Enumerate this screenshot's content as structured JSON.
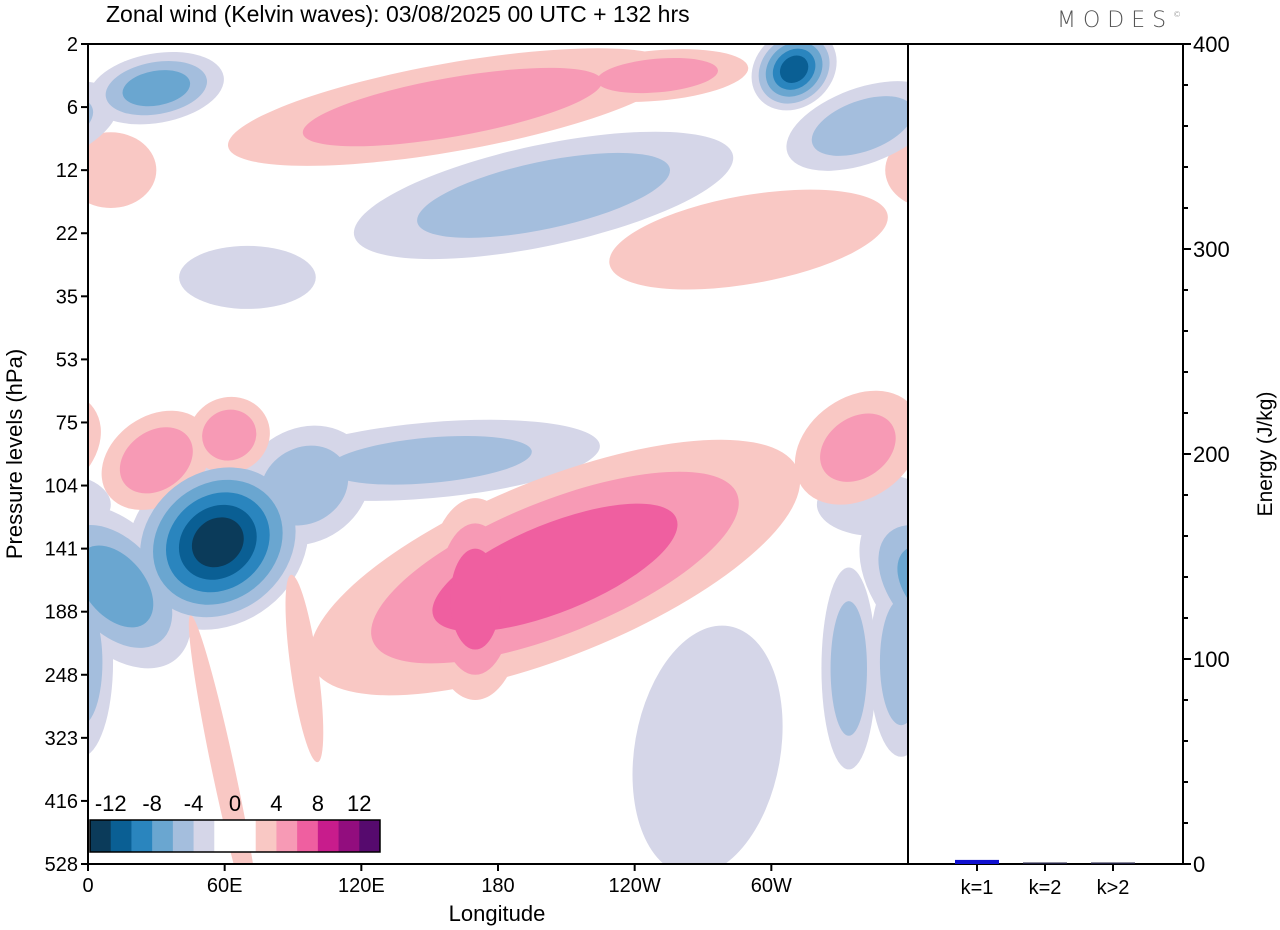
{
  "title": "Zonal wind (Kelvin waves):  03/08/2025  00 UTC  + 132 hrs",
  "logo": {
    "text": "MODES",
    "mark": "©"
  },
  "chart_data": [
    {
      "type": "heatmap",
      "title": "Zonal wind (Kelvin waves):  03/08/2025  00 UTC  + 132 hrs",
      "xlabel": "Longitude",
      "ylabel": "Pressure levels (hPa)",
      "x_ticks": [
        {
          "lon": 0,
          "label": "0"
        },
        {
          "lon": 60,
          "label": "60E"
        },
        {
          "lon": 120,
          "label": "120E"
        },
        {
          "lon": 180,
          "label": "180"
        },
        {
          "lon": 240,
          "label": "120W"
        },
        {
          "lon": 300,
          "label": "60W"
        }
      ],
      "xlim": [
        0,
        360
      ],
      "y_levels": [
        "2",
        "6",
        "12",
        "22",
        "35",
        "53",
        "75",
        "104",
        "141",
        "188",
        "248",
        "323",
        "416",
        "528"
      ],
      "colorbar": {
        "labels": [
          "-12",
          "-8",
          "-4",
          "0",
          "4",
          "8",
          "12"
        ],
        "bounds": [
          -14,
          14
        ],
        "step": 2,
        "colors": [
          "#0b3b5a",
          "#0a5f94",
          "#2a85be",
          "#6aa6d0",
          "#a4bedd",
          "#d5d6e8",
          "#ffffff",
          "#ffffff",
          "#f9c8c4",
          "#f79ab5",
          "#ef5fa0",
          "#c81c8c",
          "#920d7e",
          "#560a6e"
        ]
      },
      "features": [
        {
          "lon": 57,
          "lev": 7.9,
          "rx": 42,
          "ry": 1.3,
          "rot": -38,
          "peak": -14
        },
        {
          "lon": 95,
          "lev": 7.0,
          "rx": 30,
          "ry": 0.9,
          "rot": -30,
          "peak": -6
        },
        {
          "lon": 12,
          "lev": 8.6,
          "rx": 26,
          "ry": 1.5,
          "rot": -40,
          "peak": -8
        },
        {
          "lon": 357,
          "lev": 9.8,
          "rx": 14,
          "ry": 1.5,
          "rot": 0,
          "peak": -6
        },
        {
          "lon": 334,
          "lev": 9.9,
          "rx": 12,
          "ry": 1.6,
          "rot": 0,
          "peak": -6
        },
        {
          "lon": 150,
          "lev": 6.6,
          "rx": 75,
          "ry": 0.6,
          "rot": -5,
          "peak": -5
        },
        {
          "lon": 272,
          "lev": 11.2,
          "rx": 32,
          "ry": 2.0,
          "rot": 10,
          "peak": -3
        },
        {
          "lon": 345,
          "lev": 7.3,
          "rx": 25,
          "ry": 0.5,
          "rot": 0,
          "peak": -3
        },
        {
          "lon": 205,
          "lev": 8.3,
          "rx": 115,
          "ry": 1.4,
          "rot": -22,
          "peak": 8
        },
        {
          "lon": 170,
          "lev": 8.8,
          "rx": 22,
          "ry": 1.6,
          "rot": 0,
          "peak": 8
        },
        {
          "lon": 30,
          "lev": 6.6,
          "rx": 26,
          "ry": 0.7,
          "rot": -35,
          "peak": 6
        },
        {
          "lon": 62,
          "lev": 6.2,
          "rx": 18,
          "ry": 0.6,
          "rot": -20,
          "peak": 6
        },
        {
          "lon": 338,
          "lev": 6.4,
          "rx": 30,
          "ry": 0.8,
          "rot": -35,
          "peak": 5
        },
        {
          "lon": 60,
          "lev": 11.6,
          "rx": 5,
          "ry": 2.6,
          "rot": -12,
          "peak": 3
        },
        {
          "lon": 95,
          "lev": 9.9,
          "rx": 6,
          "ry": 1.5,
          "rot": -8,
          "peak": 3
        },
        {
          "lon": 160,
          "lev": 1.0,
          "rx": 100,
          "ry": 0.7,
          "rot": -10,
          "peak": 6
        },
        {
          "lon": 30,
          "lev": 0.7,
          "rx": 30,
          "ry": 0.55,
          "rot": -10,
          "peak": -8
        },
        {
          "lon": 310,
          "lev": 0.4,
          "rx": 20,
          "ry": 0.6,
          "rot": -40,
          "peak": -12
        },
        {
          "lon": 200,
          "lev": 2.4,
          "rx": 85,
          "ry": 0.8,
          "rot": -12,
          "peak": -6
        },
        {
          "lon": 290,
          "lev": 3.1,
          "rx": 62,
          "ry": 0.7,
          "rot": -10,
          "peak": 4
        },
        {
          "lon": 70,
          "lev": 3.7,
          "rx": 30,
          "ry": 0.5,
          "rot": 0,
          "peak": -3
        },
        {
          "lon": 10,
          "lev": 2.0,
          "rx": 20,
          "ry": 0.6,
          "rot": 0,
          "peak": 3
        },
        {
          "lon": 340,
          "lev": 1.3,
          "rx": 35,
          "ry": 0.6,
          "rot": -20,
          "peak": -6
        },
        {
          "lon": 250,
          "lev": 0.5,
          "rx": 40,
          "ry": 0.4,
          "rot": -5,
          "peak": 6
        }
      ]
    },
    {
      "type": "bar",
      "categories": [
        "k=1",
        "k=2",
        "k>2"
      ],
      "values": [
        2.0,
        0.3,
        0.6
      ],
      "colors": [
        "#1010d0",
        "#202040",
        "#202040"
      ],
      "ylabel": "Energy (J/kg)",
      "ylim": [
        0,
        400
      ],
      "y_ticks": [
        "0",
        "100",
        "200",
        "300",
        "400"
      ]
    }
  ]
}
